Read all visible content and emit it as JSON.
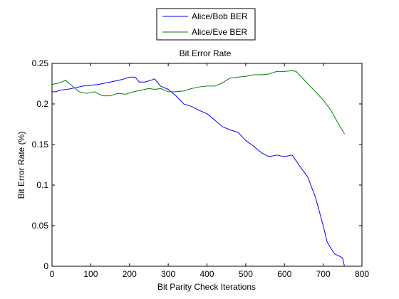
{
  "chart_data": {
    "type": "line",
    "title": "Bit Error Rate",
    "xlabel": "Bit Parity Check Iterations",
    "ylabel": "Bit Error Rate (%)",
    "xlim": [
      0,
      800
    ],
    "ylim": [
      0,
      0.25
    ],
    "xticks": [
      0,
      100,
      200,
      300,
      400,
      500,
      600,
      700,
      800
    ],
    "xtick_labels": [
      "0",
      "100",
      "200",
      "300",
      "400",
      "500",
      "600",
      "700",
      "800"
    ],
    "yticks": [
      0,
      0.05,
      0.1,
      0.15,
      0.2,
      0.25
    ],
    "ytick_labels": [
      "0",
      "0.05",
      "0.1",
      "0.15",
      "0.2",
      "0.25"
    ],
    "grid": false,
    "legend_position": "top-center, outside plot",
    "series": [
      {
        "name": "Alice/Bob BER",
        "color": "#0000ff",
        "x": [
          0,
          10,
          20,
          40,
          60,
          80,
          100,
          120,
          140,
          160,
          180,
          200,
          215,
          225,
          240,
          260,
          265,
          280,
          300,
          320,
          340,
          360,
          380,
          400,
          420,
          440,
          460,
          480,
          500,
          520,
          540,
          560,
          580,
          600,
          620,
          630,
          640,
          660,
          680,
          700,
          710,
          720,
          730,
          740,
          750,
          755
        ],
        "y": [
          0.215,
          0.215,
          0.217,
          0.218,
          0.22,
          0.222,
          0.223,
          0.224,
          0.226,
          0.228,
          0.23,
          0.233,
          0.233,
          0.227,
          0.227,
          0.23,
          0.231,
          0.222,
          0.218,
          0.21,
          0.2,
          0.197,
          0.192,
          0.188,
          0.18,
          0.172,
          0.168,
          0.165,
          0.155,
          0.148,
          0.14,
          0.135,
          0.137,
          0.135,
          0.137,
          0.13,
          0.123,
          0.11,
          0.085,
          0.05,
          0.03,
          0.022,
          0.015,
          0.013,
          0.01,
          0.0
        ]
      },
      {
        "name": "Alice/Eve BER",
        "color": "#008000",
        "x": [
          0,
          20,
          35,
          50,
          70,
          90,
          110,
          130,
          150,
          170,
          190,
          210,
          230,
          250,
          265,
          280,
          300,
          320,
          340,
          360,
          380,
          400,
          420,
          440,
          460,
          480,
          500,
          520,
          540,
          560,
          580,
          600,
          620,
          630,
          640,
          660,
          680,
          700,
          720,
          740,
          755
        ],
        "y": [
          0.224,
          0.226,
          0.229,
          0.223,
          0.215,
          0.213,
          0.215,
          0.21,
          0.21,
          0.213,
          0.212,
          0.215,
          0.217,
          0.219,
          0.218,
          0.219,
          0.215,
          0.215,
          0.216,
          0.219,
          0.221,
          0.222,
          0.222,
          0.226,
          0.232,
          0.233,
          0.234,
          0.236,
          0.236,
          0.237,
          0.24,
          0.24,
          0.241,
          0.24,
          0.235,
          0.225,
          0.215,
          0.205,
          0.192,
          0.175,
          0.163
        ]
      }
    ]
  }
}
